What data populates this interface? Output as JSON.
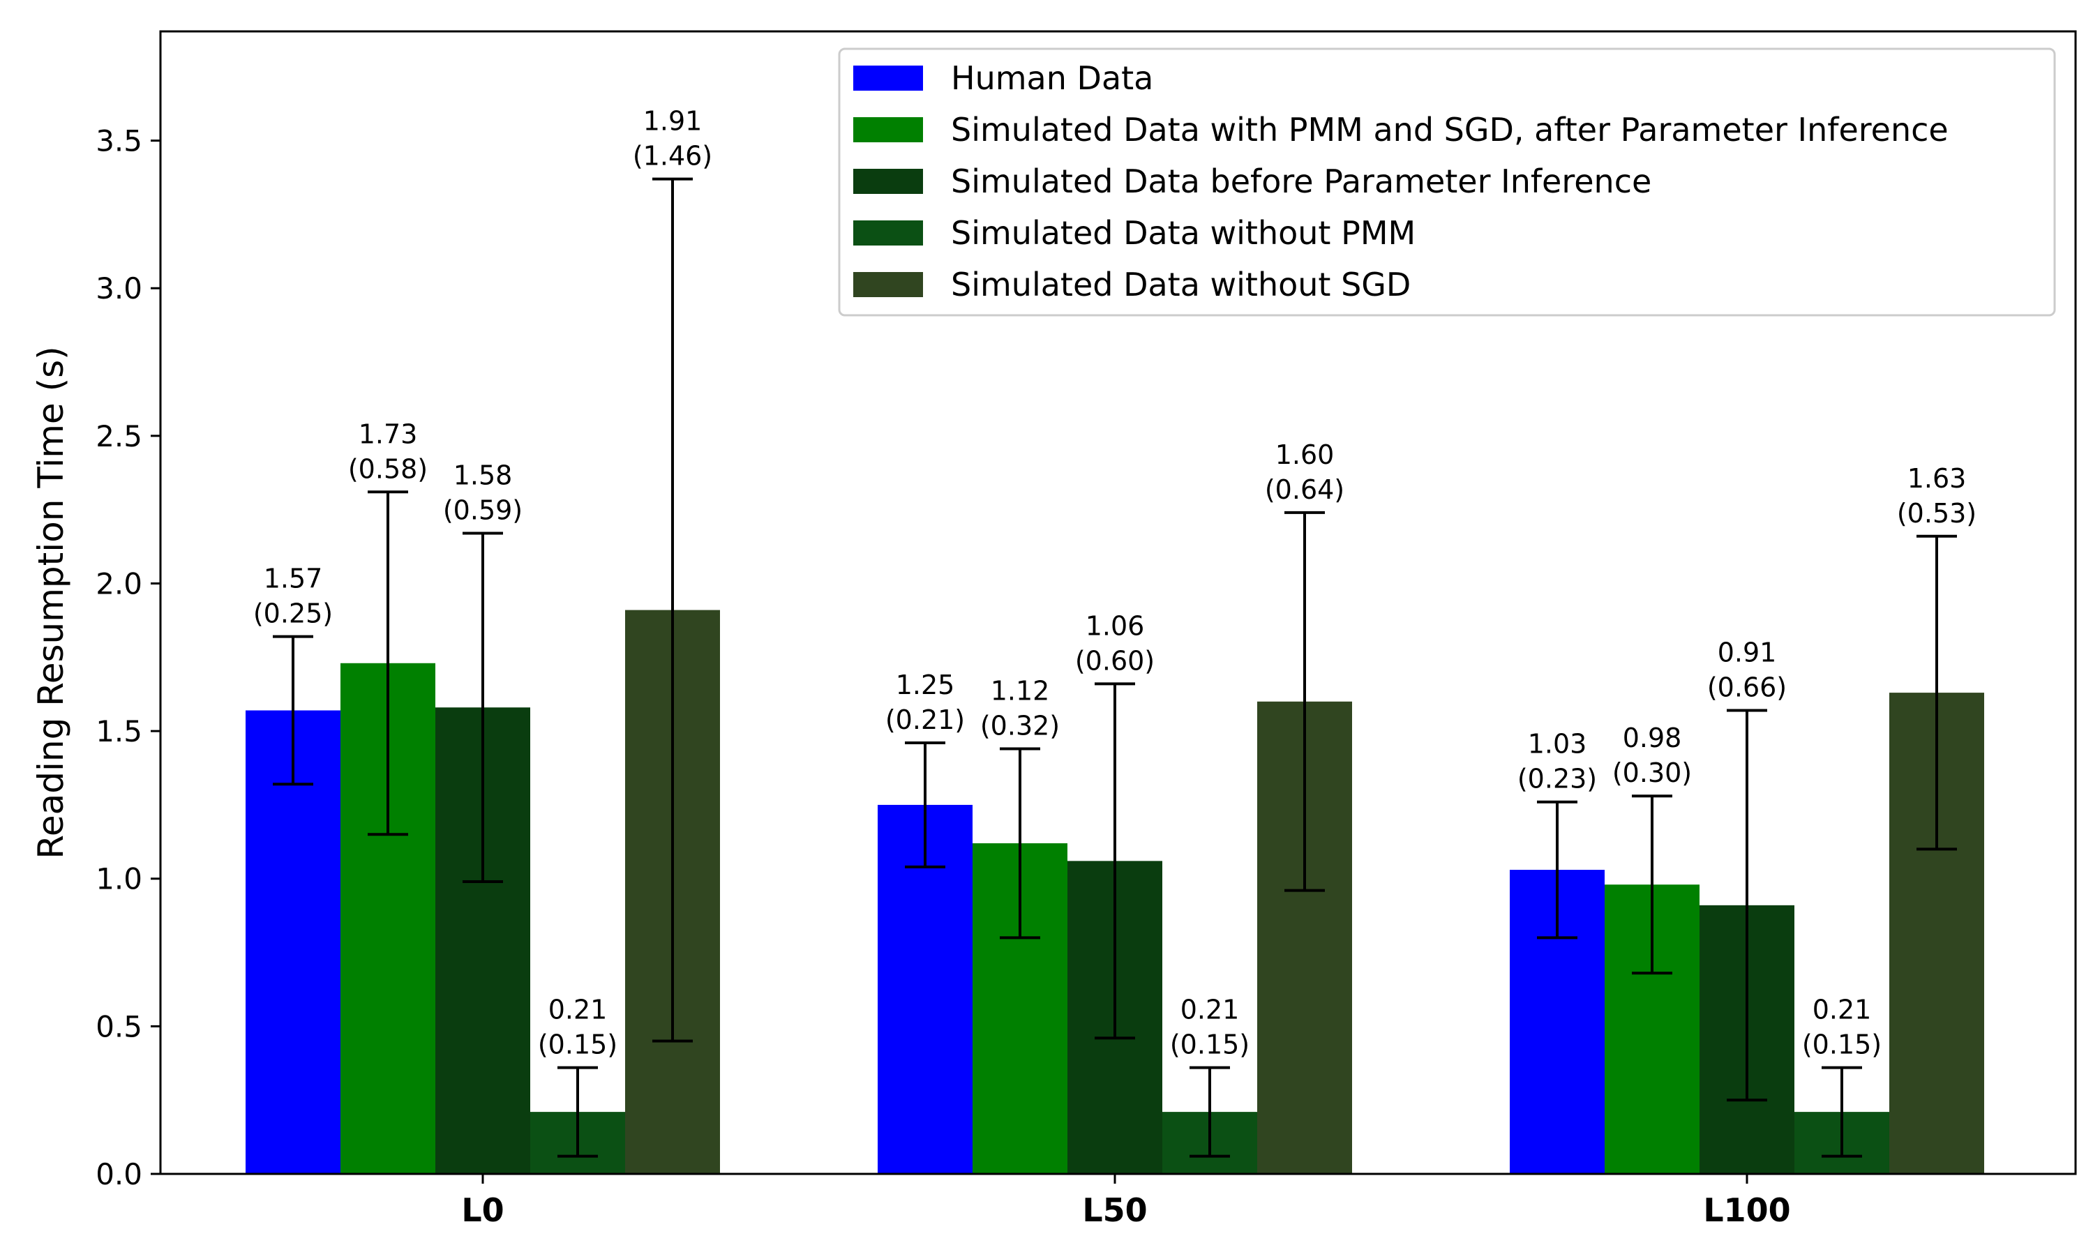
{
  "chart_data": {
    "type": "bar",
    "title": "",
    "xlabel": "",
    "ylabel": "Reading Resumption Time (s)",
    "ylim": [
      0,
      3.87
    ],
    "yticks": [
      "0.0",
      "0.5",
      "1.0",
      "1.5",
      "2.0",
      "2.5",
      "3.0",
      "3.5"
    ],
    "categories": [
      "L0",
      "L50",
      "L100"
    ],
    "legend_position": "top-right",
    "grid": false,
    "series": [
      {
        "name": "Human Data",
        "color": "#0000ff",
        "values": [
          1.57,
          1.25,
          1.03
        ],
        "errors": [
          0.25,
          0.21,
          0.23
        ],
        "labels": [
          [
            "1.57",
            "(0.25)"
          ],
          [
            "1.25",
            "(0.21)"
          ],
          [
            "1.03",
            "(0.23)"
          ]
        ]
      },
      {
        "name": "Simulated Data with PMM and SGD, after Parameter Inference",
        "color": "#008000",
        "values": [
          1.73,
          1.12,
          0.98
        ],
        "errors": [
          0.58,
          0.32,
          0.3
        ],
        "labels": [
          [
            "1.73",
            "(0.58)"
          ],
          [
            "1.12",
            "(0.32)"
          ],
          [
            "0.98",
            "(0.30)"
          ]
        ]
      },
      {
        "name": "Simulated Data before Parameter Inference",
        "color": "#0a3d0f",
        "values": [
          1.58,
          1.06,
          0.91
        ],
        "errors": [
          0.59,
          0.6,
          0.66
        ],
        "labels": [
          [
            "1.58",
            "(0.59)"
          ],
          [
            "1.06",
            "(0.60)"
          ],
          [
            "0.91",
            "(0.66)"
          ]
        ]
      },
      {
        "name": "Simulated Data without PMM",
        "color": "#0b5014",
        "values": [
          0.21,
          0.21,
          0.21
        ],
        "errors": [
          0.15,
          0.15,
          0.15
        ],
        "labels": [
          [
            "0.21",
            "(0.15)"
          ],
          [
            "0.21",
            "(0.15)"
          ],
          [
            "0.21",
            "(0.15)"
          ]
        ]
      },
      {
        "name": "Simulated Data without SGD",
        "color": "#304520",
        "values": [
          1.91,
          1.6,
          1.63
        ],
        "errors": [
          1.46,
          0.64,
          0.53
        ],
        "labels": [
          [
            "1.91",
            "(1.46)"
          ],
          [
            "1.60",
            "(0.64)"
          ],
          [
            "1.63",
            "(0.53)"
          ]
        ]
      }
    ]
  }
}
